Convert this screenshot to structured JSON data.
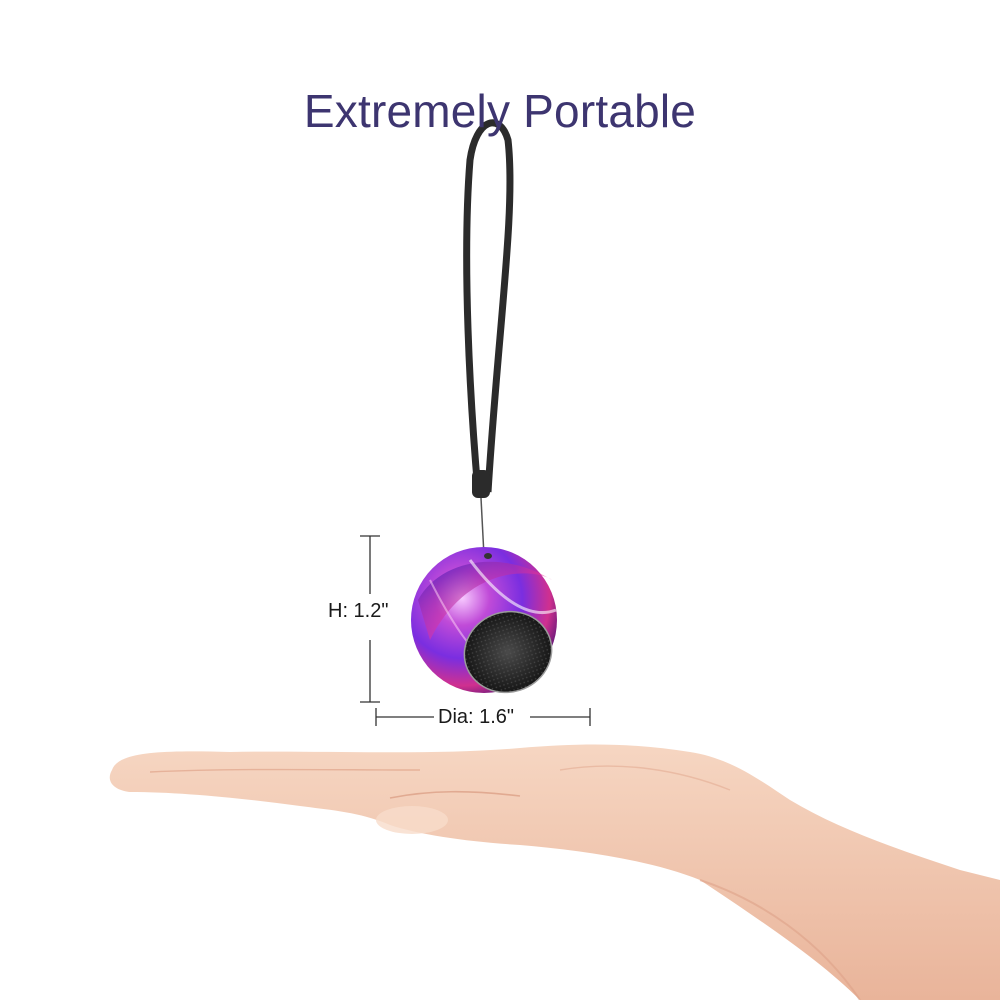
{
  "headline": "Extremely Portable",
  "dimensions": {
    "height_label": "H: 1.2\"",
    "diameter_label": "Dia: 1.6\""
  },
  "colors": {
    "headline": "#3d3570",
    "background": "#ffffff",
    "strap": "#2b2b2b",
    "speaker_purple": "#7a2ee0",
    "speaker_pink": "#e0329a",
    "grille": "#2a2a2a",
    "skin": "#f2c9b0"
  },
  "icons": [
    "speaker-ball",
    "lanyard-strap",
    "open-hand"
  ]
}
